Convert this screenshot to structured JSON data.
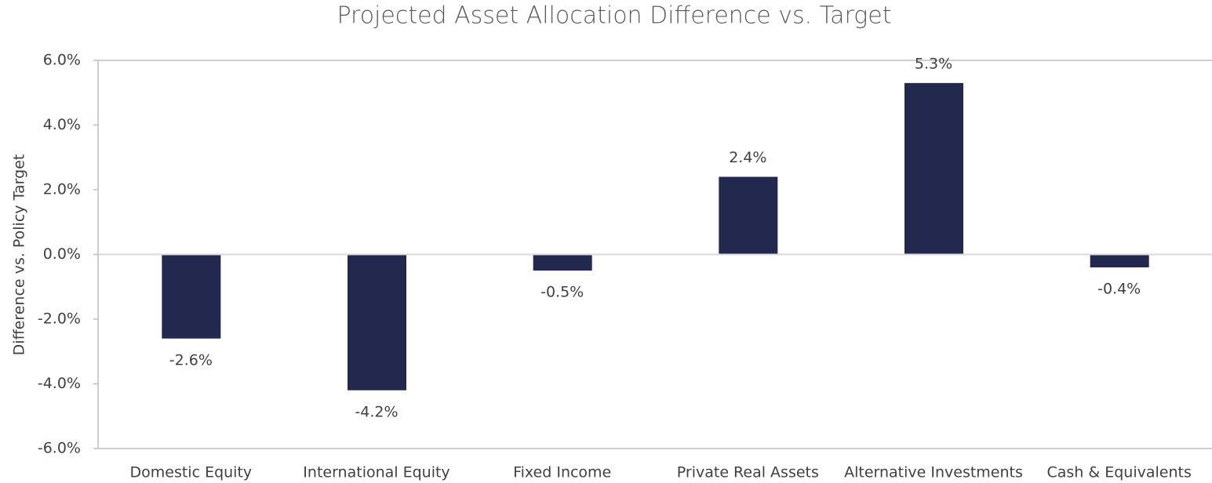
{
  "chart_data": {
    "type": "bar",
    "title": "Projected Asset Allocation Difference vs. Target",
    "y_label": "Difference vs. Policy Target",
    "categories": [
      "Domestic Equity",
      "International Equity",
      "Fixed Income",
      "Private Real Assets",
      "Alternative Investments",
      "Cash & Equivalents"
    ],
    "values": [
      -2.6,
      -4.2,
      -0.5,
      2.4,
      5.3,
      -0.4
    ],
    "value_labels": [
      "-2.6%",
      "-4.2%",
      "-0.5%",
      "2.4%",
      "5.3%",
      "-0.4%"
    ],
    "color": "#23284e",
    "ylim": [
      -6,
      6
    ],
    "yticks": [
      {
        "value": -6,
        "label": "-6.0%"
      },
      {
        "value": -4,
        "label": "-4.0%"
      },
      {
        "value": -2,
        "label": "-2.0%"
      },
      {
        "value": 0,
        "label": "0.0%"
      },
      {
        "value": 2,
        "label": "2.0%"
      },
      {
        "value": 4,
        "label": "4.0%"
      },
      {
        "value": 6,
        "label": "6.0%"
      }
    ],
    "grid": false
  }
}
